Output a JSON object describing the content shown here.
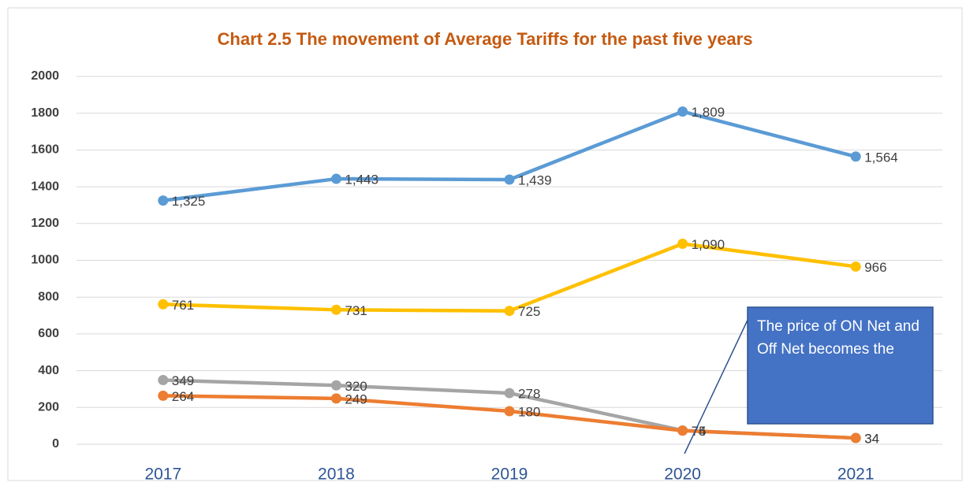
{
  "chart_data": {
    "type": "line",
    "title": "Chart 2.5 The movement of Average Tariffs for the past five years",
    "categories": [
      "2017",
      "2018",
      "2019",
      "2020",
      "2021"
    ],
    "series": [
      {
        "color": "#5b9bd5",
        "values": [
          1325,
          1443,
          1439,
          1809,
          1564
        ],
        "value_labels": [
          "1,325",
          "1,443",
          "1,439",
          "1,809",
          "1,564"
        ]
      },
      {
        "color": "#ffc000",
        "values": [
          761,
          731,
          725,
          1090,
          966
        ],
        "value_labels": [
          "761",
          "731",
          "725",
          "1,090",
          "966"
        ]
      },
      {
        "color": "#a5a5a5",
        "values": [
          349,
          320,
          278,
          75,
          34
        ]
      },
      {
        "color": "#ed7d31",
        "values": [
          264,
          249,
          180,
          74,
          34
        ]
      }
    ],
    "ylim": [
      0,
      2000
    ],
    "yticks": [
      0,
      200,
      400,
      600,
      800,
      1000,
      1200,
      1400,
      1600,
      1800,
      2000
    ],
    "grid": true,
    "annotation": "The price of ON Net and Off Net becomes the"
  }
}
